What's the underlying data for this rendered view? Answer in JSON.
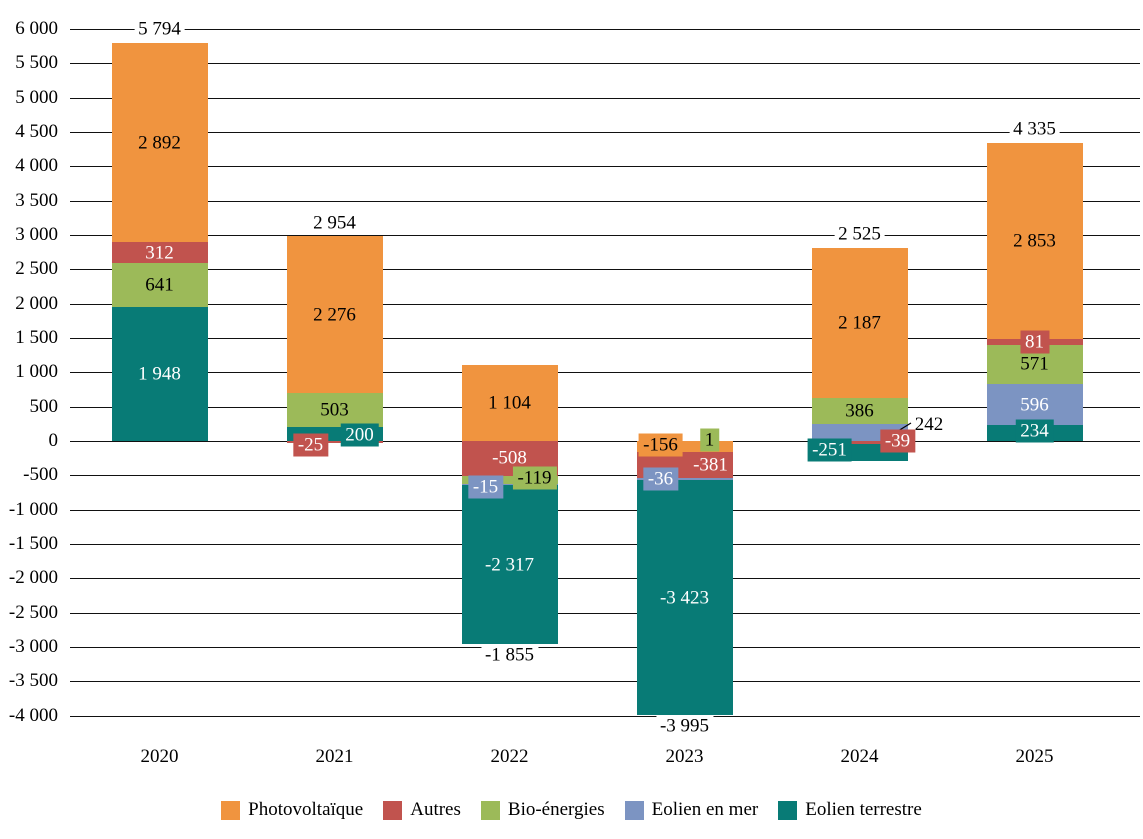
{
  "chart_data": {
    "type": "bar",
    "stacked": true,
    "title": "",
    "categories": [
      "2020",
      "2021",
      "2022",
      "2023",
      "2024",
      "2025"
    ],
    "series": [
      {
        "name": "Photovoltaïque",
        "color": "#F0943F",
        "label_color": "#000000",
        "values": [
          2892,
          2276,
          1104,
          -156,
          2187,
          2853
        ],
        "labels": [
          "2 892",
          "2 276",
          "1 104",
          "-156",
          "2 187",
          "2 853"
        ]
      },
      {
        "name": "Autres",
        "color": "#C1534E",
        "label_color": "#ffffff",
        "values": [
          312,
          -25,
          -508,
          -381,
          -39,
          81
        ],
        "labels": [
          "312",
          "-25",
          "-508",
          "-381",
          "-39",
          "81"
        ]
      },
      {
        "name": "Bio-énergies",
        "color": "#9CBA59",
        "label_color": "#000000",
        "values": [
          641,
          503,
          -119,
          1,
          386,
          571
        ],
        "labels": [
          "641",
          "503",
          "-119",
          "1",
          "386",
          "571"
        ]
      },
      {
        "name": "Eolien en mer",
        "color": "#7C94C2",
        "label_color": "#ffffff",
        "values": [
          0,
          0,
          -15,
          -36,
          242,
          596
        ],
        "labels": [
          "",
          "",
          "-15",
          "-36",
          "242",
          "596"
        ]
      },
      {
        "name": "Eolien terrestre",
        "color": "#087B76",
        "label_color": "#ffffff",
        "values": [
          1948,
          200,
          -2317,
          -3423,
          -251,
          234
        ],
        "labels": [
          "1 948",
          "200",
          "-2 317",
          "-3 423",
          "-251",
          "234"
        ]
      }
    ],
    "totals": [
      "5 794",
      "2 954",
      "-1 855",
      "-3 995",
      "2 525",
      "4 335"
    ],
    "y_axis": {
      "min": -4000,
      "max": 6000,
      "step": 500,
      "tick_labels": [
        "6 000",
        "5 500",
        "5 000",
        "4 500",
        "4 000",
        "3 500",
        "3 000",
        "2 500",
        "2 000",
        "1 500",
        "1 000",
        "500",
        "0",
        "-500",
        "-1 000",
        "-1 500",
        "-2 000",
        "-2 500",
        "-3 000",
        "-3 500",
        "-4 000"
      ]
    },
    "x_axis": {
      "tick_labels": [
        "2020",
        "2021",
        "2022",
        "2023",
        "2024",
        "2025"
      ]
    },
    "legend": {
      "position": "bottom",
      "items": [
        "Photovoltaïque",
        "Autres",
        "Bio-énergies",
        "Eolien en mer",
        "Eolien terrestre"
      ]
    },
    "grid": true
  }
}
